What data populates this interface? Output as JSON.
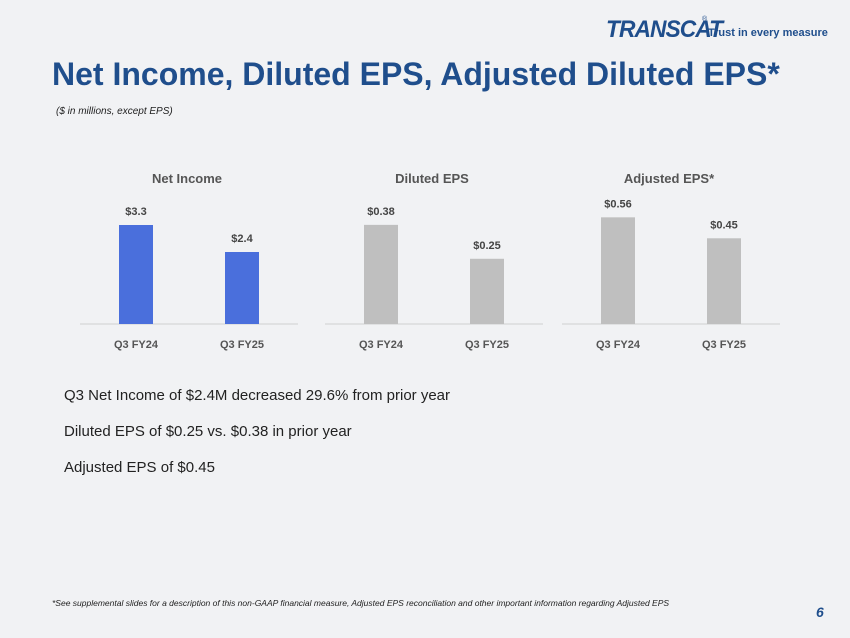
{
  "logo": {
    "brand": "TRANSCAT",
    "registered": "®",
    "tagline": "Trust in every measure"
  },
  "title": "Net Income, Diluted EPS, Adjusted Diluted EPS*",
  "subtitle": "($ in millions, except EPS)",
  "chart_data": [
    {
      "type": "bar",
      "title": "Net Income",
      "categories": [
        "Q3 FY24",
        "Q3 FY25"
      ],
      "values": [
        3.3,
        2.4
      ],
      "labels": [
        "$3.3",
        "$2.4"
      ],
      "color": "#4a6fdc",
      "ylim": [
        0,
        4.0
      ]
    },
    {
      "type": "bar",
      "title": "Diluted EPS",
      "categories": [
        "Q3 FY24",
        "Q3 FY25"
      ],
      "values": [
        0.38,
        0.25
      ],
      "labels": [
        "$0.38",
        "$0.25"
      ],
      "color": "#bfbfbf",
      "ylim": [
        0,
        0.46
      ]
    },
    {
      "type": "bar",
      "title": "Adjusted EPS*",
      "categories": [
        "Q3 FY24",
        "Q3 FY25"
      ],
      "values": [
        0.56,
        0.45
      ],
      "labels": [
        "$0.56",
        "$0.45"
      ],
      "color": "#bfbfbf",
      "ylim": [
        0,
        0.63
      ]
    }
  ],
  "bullets": [
    "Q3 Net Income of $2.4M decreased 29.6% from prior year",
    "Diluted EPS of $0.25 vs. $0.38 in prior year",
    "Adjusted EPS of $0.45"
  ],
  "footnote": "*See supplemental slides for a description of this non-GAAP financial measure, Adjusted EPS reconciliation and other important information regarding Adjusted EPS",
  "page_number": "6"
}
